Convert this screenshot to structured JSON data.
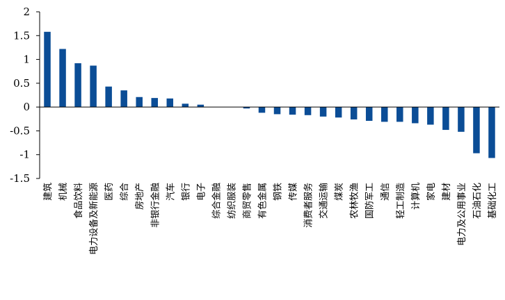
{
  "chart_data": {
    "type": "bar",
    "title": "",
    "xlabel": "",
    "ylabel": "",
    "ylim": [
      -1.5,
      2
    ],
    "yticks": [
      "2",
      "1.5",
      "1",
      "0.5",
      "0",
      "-0.5",
      "-1",
      "-1.5"
    ],
    "bar_color": "#0b4d96",
    "grid": false,
    "categories": [
      "建筑",
      "机械",
      "食品饮料",
      "电力设备及新能源",
      "医药",
      "综合",
      "房地产",
      "非银行金融",
      "汽车",
      "银行",
      "电子",
      "综合金融",
      "纺织服装",
      "商贸零售",
      "有色金属",
      "钢铁",
      "传媒",
      "消费者服务",
      "交通运输",
      "煤炭",
      "农林牧渔",
      "国防军工",
      "通信",
      "轻工制造",
      "计算机",
      "家电",
      "建材",
      "电力及公用事业",
      "石油石化",
      "基础化工"
    ],
    "values": [
      1.58,
      1.22,
      0.92,
      0.87,
      0.43,
      0.35,
      0.21,
      0.19,
      0.18,
      0.07,
      0.05,
      0.0,
      0.0,
      -0.03,
      -0.12,
      -0.15,
      -0.16,
      -0.17,
      -0.2,
      -0.22,
      -0.26,
      -0.29,
      -0.31,
      -0.31,
      -0.34,
      -0.37,
      -0.48,
      -0.52,
      -0.97,
      -1.07
    ]
  }
}
